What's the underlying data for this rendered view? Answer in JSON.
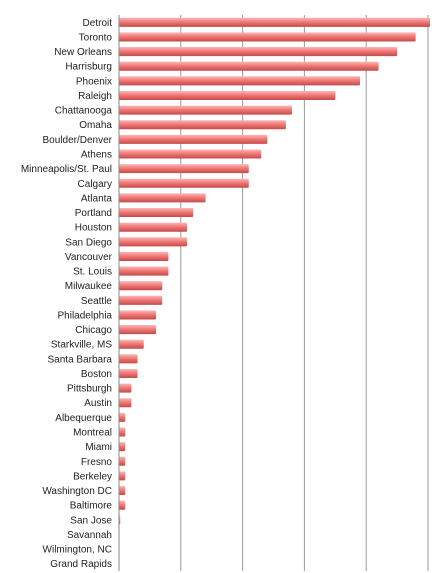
{
  "chart_data": {
    "type": "bar",
    "orientation": "horizontal",
    "title": "",
    "xlabel": "",
    "ylabel": "",
    "grid": true,
    "legend": "none",
    "xlim": [
      0,
      50
    ],
    "bar_color": "#f07a78",
    "bar_highlight": "#fbb8b6",
    "bar_edge": "#c44a48",
    "grid_color": "#9a9a9a",
    "categories": [
      "Detroit",
      "Toronto",
      "New Orleans",
      "Harrisburg",
      "Phoenix",
      "Raleigh",
      "Chattanooga",
      "Omaha",
      "Boulder/Denver",
      "Athens",
      "Minneapolis/St. Paul",
      "Calgary",
      "Atlanta",
      "Portland",
      "Houston",
      "San Diego",
      "Vancouver",
      "St. Louis",
      "Milwaukee",
      "Seattle",
      "Philadelphia",
      "Chicago",
      "Starkville, MS",
      "Santa Barbara",
      "Boston",
      "Pittsburgh",
      "Austin",
      "Albequerque",
      "Montreal",
      "Miami",
      "Fresno",
      "Berkeley",
      "Washington DC",
      "Baltimore",
      "San Jose",
      "Savannah",
      "Wilmington, NC",
      "Grand Rapids"
    ],
    "values": [
      52,
      48,
      45,
      42,
      39,
      35,
      28,
      27,
      24,
      23,
      21,
      21,
      14,
      12,
      11,
      11,
      8,
      8,
      7,
      7,
      6,
      6,
      4,
      3,
      3,
      2,
      2,
      1,
      1,
      1,
      1,
      1,
      1,
      1,
      0.2,
      0,
      0,
      0
    ]
  }
}
